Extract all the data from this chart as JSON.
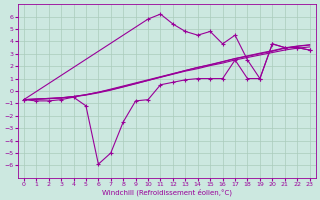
{
  "xlabel": "Windchill (Refroidissement éolien,°C)",
  "background_color": "#cce8e0",
  "grid_color": "#aaccbb",
  "line_color": "#990099",
  "xlim": [
    -0.5,
    23.5
  ],
  "ylim": [
    -7,
    7
  ],
  "xticks": [
    0,
    1,
    2,
    3,
    4,
    5,
    6,
    7,
    8,
    9,
    10,
    11,
    12,
    13,
    14,
    15,
    16,
    17,
    18,
    19,
    20,
    21,
    22,
    23
  ],
  "yticks": [
    -6,
    -5,
    -4,
    -3,
    -2,
    -1,
    0,
    1,
    2,
    3,
    4,
    5,
    6
  ],
  "line1_x": [
    0,
    1,
    2,
    3,
    4,
    5,
    6,
    7,
    8,
    9,
    10,
    11,
    12,
    13,
    14,
    15,
    16,
    17,
    18,
    19,
    20,
    21,
    22,
    23
  ],
  "line1_y": [
    -0.7,
    -0.8,
    -0.8,
    -0.7,
    -0.5,
    -1.2,
    -5.9,
    -5.0,
    -2.5,
    -0.8,
    -0.7,
    0.5,
    0.7,
    0.9,
    1.0,
    1.0,
    1.0,
    2.5,
    1.0,
    1.0,
    3.8,
    3.5,
    3.5,
    3.3
  ],
  "line2_x": [
    0,
    1,
    2,
    3,
    4,
    5,
    6,
    7,
    8,
    9,
    10,
    11,
    12,
    13,
    14,
    15,
    16,
    17,
    18,
    19,
    20,
    21,
    22,
    23
  ],
  "line2_y": [
    -0.7,
    -0.65,
    -0.6,
    -0.55,
    -0.45,
    -0.3,
    -0.1,
    0.1,
    0.35,
    0.6,
    0.85,
    1.1,
    1.35,
    1.6,
    1.8,
    2.05,
    2.25,
    2.5,
    2.7,
    2.9,
    3.1,
    3.3,
    3.45,
    3.55
  ],
  "line3_x": [
    0,
    1,
    2,
    3,
    4,
    5,
    6,
    7,
    8,
    9,
    10,
    11,
    12,
    13,
    14,
    15,
    16,
    17,
    18,
    19,
    20,
    21,
    22,
    23
  ],
  "line3_y": [
    -0.7,
    -0.65,
    -0.6,
    -0.55,
    -0.45,
    -0.3,
    -0.1,
    0.15,
    0.4,
    0.65,
    0.9,
    1.15,
    1.4,
    1.65,
    1.9,
    2.1,
    2.35,
    2.6,
    2.8,
    3.0,
    3.2,
    3.45,
    3.6,
    3.7
  ],
  "line4_x": [
    0,
    1,
    2,
    3,
    4,
    5,
    6,
    7,
    8,
    9,
    10,
    11,
    12,
    13,
    14,
    15,
    16,
    17,
    18,
    19,
    20,
    21,
    22,
    23
  ],
  "line4_y": [
    -0.7,
    -0.67,
    -0.63,
    -0.57,
    -0.47,
    -0.33,
    -0.15,
    0.07,
    0.32,
    0.58,
    0.85,
    1.12,
    1.38,
    1.65,
    1.9,
    2.13,
    2.37,
    2.62,
    2.83,
    3.05,
    3.25,
    3.48,
    3.62,
    3.73
  ],
  "upper_x": [
    0,
    10,
    11,
    12,
    13,
    14,
    15,
    16,
    17,
    18,
    19,
    20,
    21,
    22,
    23
  ],
  "upper_y": [
    -0.7,
    5.8,
    6.2,
    5.4,
    4.8,
    4.5,
    4.8,
    3.8,
    4.5,
    2.5,
    1.0,
    3.8,
    3.5,
    3.5,
    3.3
  ]
}
